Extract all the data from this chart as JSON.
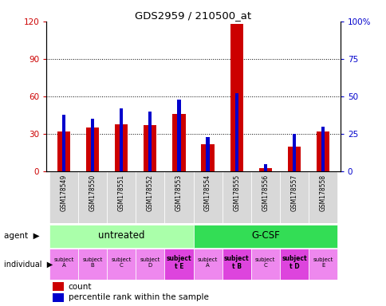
{
  "title": "GDS2959 / 210500_at",
  "samples": [
    "GSM178549",
    "GSM178550",
    "GSM178551",
    "GSM178552",
    "GSM178553",
    "GSM178554",
    "GSM178555",
    "GSM178556",
    "GSM178557",
    "GSM178558"
  ],
  "count_values": [
    32,
    35,
    38,
    37,
    46,
    22,
    118,
    3,
    20,
    32
  ],
  "percentile_values": [
    38,
    35,
    42,
    40,
    48,
    23,
    52,
    5,
    25,
    30
  ],
  "count_color": "#cc0000",
  "percentile_color": "#0000cc",
  "ylim_left": [
    0,
    120
  ],
  "ylim_right": [
    0,
    100
  ],
  "yticks_left": [
    0,
    30,
    60,
    90,
    120
  ],
  "yticks_right": [
    0,
    25,
    50,
    75,
    100
  ],
  "ytick_labels_left": [
    "0",
    "30",
    "60",
    "90",
    "120"
  ],
  "ytick_labels_right": [
    "0",
    "25",
    "50",
    "75",
    "100%"
  ],
  "agent_groups": [
    {
      "label": "untreated",
      "start": 0,
      "end": 5,
      "color": "#aaffaa"
    },
    {
      "label": "G-CSF",
      "start": 5,
      "end": 10,
      "color": "#33dd55"
    }
  ],
  "individual_labels": [
    "subject\nA",
    "subject\nB",
    "subject\nC",
    "subject\nD",
    "subject\nt E",
    "subject\nA",
    "subject\nt B",
    "subject\nC",
    "subject\nt D",
    "subject\nE"
  ],
  "individual_bold": [
    4,
    6,
    8
  ],
  "individual_colors": [
    "#ee88ee",
    "#ee88ee",
    "#ee88ee",
    "#ee88ee",
    "#dd44dd",
    "#ee88ee",
    "#dd44dd",
    "#ee88ee",
    "#dd44dd",
    "#ee88ee"
  ],
  "count_color_label": "count",
  "percentile_color_label": "percentile rank within the sample",
  "xlabel_color_left": "#cc0000",
  "xlabel_color_right": "#0000cc",
  "sample_box_color": "#d8d8d8"
}
